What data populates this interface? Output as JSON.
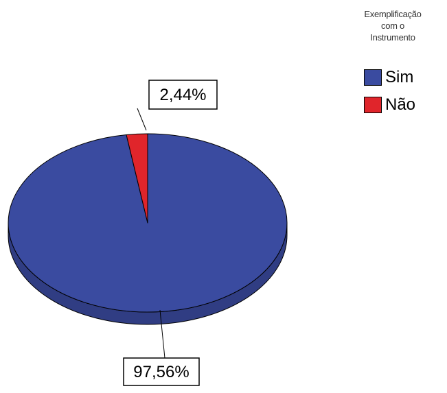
{
  "chart_data": {
    "type": "pie",
    "legend_title": "Exemplificação\ncom o\nInstrumento",
    "legend_position": "top-right",
    "slices": [
      {
        "name": "Sim",
        "value": 97.56,
        "label": "97,56%",
        "color": "#3a4ba0"
      },
      {
        "name": "Não",
        "value": 2.44,
        "label": "2,44%",
        "color": "#e0252b"
      }
    ]
  }
}
